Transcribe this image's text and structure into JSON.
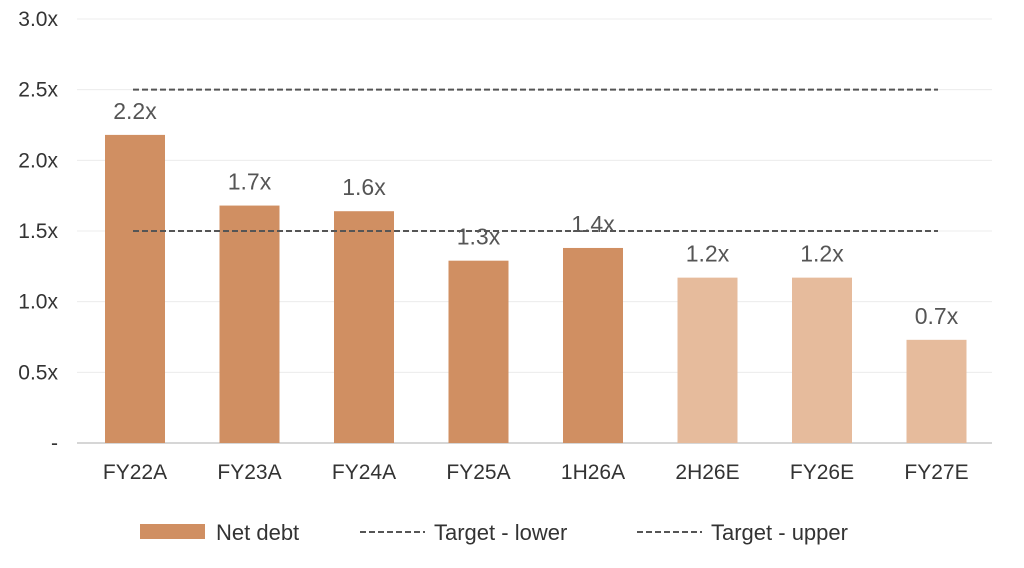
{
  "chart_data": {
    "type": "bar",
    "categories": [
      "FY22A",
      "FY23A",
      "FY24A",
      "FY25A",
      "1H26A",
      "2H26E",
      "FY26E",
      "FY27E"
    ],
    "series": [
      {
        "name": "Net debt",
        "values": [
          2.2,
          1.7,
          1.6,
          1.3,
          1.4,
          1.2,
          1.2,
          0.7
        ],
        "bar_heights": [
          2.18,
          1.68,
          1.64,
          1.29,
          1.38,
          1.17,
          1.17,
          0.73
        ],
        "data_labels": [
          "2.2x",
          "1.7x",
          "1.6x",
          "1.3x",
          "1.4x",
          "1.2x",
          "1.2x",
          "0.7x"
        ],
        "colors": [
          "#d08f62",
          "#d08f62",
          "#d08f62",
          "#d08f62",
          "#d08f62",
          "#e6bb9c",
          "#e6bb9c",
          "#e6bb9c"
        ]
      },
      {
        "name": "Target - lower",
        "type": "line",
        "value": 1.5,
        "style": "dashed",
        "color": "#555555"
      },
      {
        "name": "Target - upper",
        "type": "line",
        "value": 2.5,
        "style": "dashed",
        "color": "#555555"
      }
    ],
    "y_ticks": [
      {
        "value": 0,
        "label": "-"
      },
      {
        "value": 0.5,
        "label": "0.5x"
      },
      {
        "value": 1.0,
        "label": "1.0x"
      },
      {
        "value": 1.5,
        "label": "1.5x"
      },
      {
        "value": 2.0,
        "label": "2.0x"
      },
      {
        "value": 2.5,
        "label": "2.5x"
      },
      {
        "value": 3.0,
        "label": "3.0x"
      }
    ],
    "ylim": [
      0,
      3.0
    ],
    "grid": true,
    "legend": {
      "position": "bottom",
      "entries": [
        {
          "label": "Net debt",
          "marker": "bar",
          "color": "#d08f62"
        },
        {
          "label": "Target - lower",
          "marker": "dashed-line",
          "color": "#555555"
        },
        {
          "label": "Target - upper",
          "marker": "dashed-line",
          "color": "#555555"
        }
      ]
    },
    "title": "",
    "xlabel": "",
    "ylabel": ""
  }
}
